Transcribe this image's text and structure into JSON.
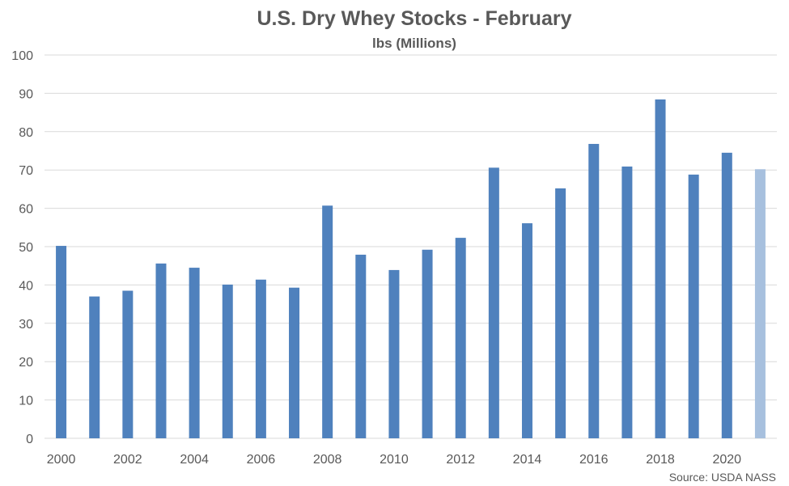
{
  "chart_data": {
    "type": "bar",
    "title": "U.S. Dry Whey Stocks - February",
    "subtitle": "lbs (Millions)",
    "source": "Source: USDA NASS",
    "categories": [
      "2000",
      "2001",
      "2002",
      "2003",
      "2004",
      "2005",
      "2006",
      "2007",
      "2008",
      "2009",
      "2010",
      "2011",
      "2012",
      "2013",
      "2014",
      "2015",
      "2016",
      "2017",
      "2018",
      "2019",
      "2020",
      "2021"
    ],
    "x_tick_labels": [
      "2000",
      "2002",
      "2004",
      "2006",
      "2008",
      "2010",
      "2012",
      "2014",
      "2016",
      "2018",
      "2020"
    ],
    "values": [
      50.2,
      37.0,
      38.5,
      45.6,
      44.5,
      40.1,
      41.4,
      39.3,
      60.7,
      47.9,
      43.9,
      49.2,
      52.3,
      70.6,
      56.1,
      65.2,
      76.8,
      70.9,
      88.4,
      68.8,
      74.5,
      70.2
    ],
    "highlight_last": true,
    "ylim": [
      0,
      100
    ],
    "y_ticks": [
      0,
      10,
      20,
      30,
      40,
      50,
      60,
      70,
      80,
      90,
      100
    ],
    "grid": true,
    "colors": {
      "bar": "#4f81bd",
      "highlight": "#a7c0de",
      "grid": "#d9d9d9",
      "text": "#595959"
    }
  }
}
